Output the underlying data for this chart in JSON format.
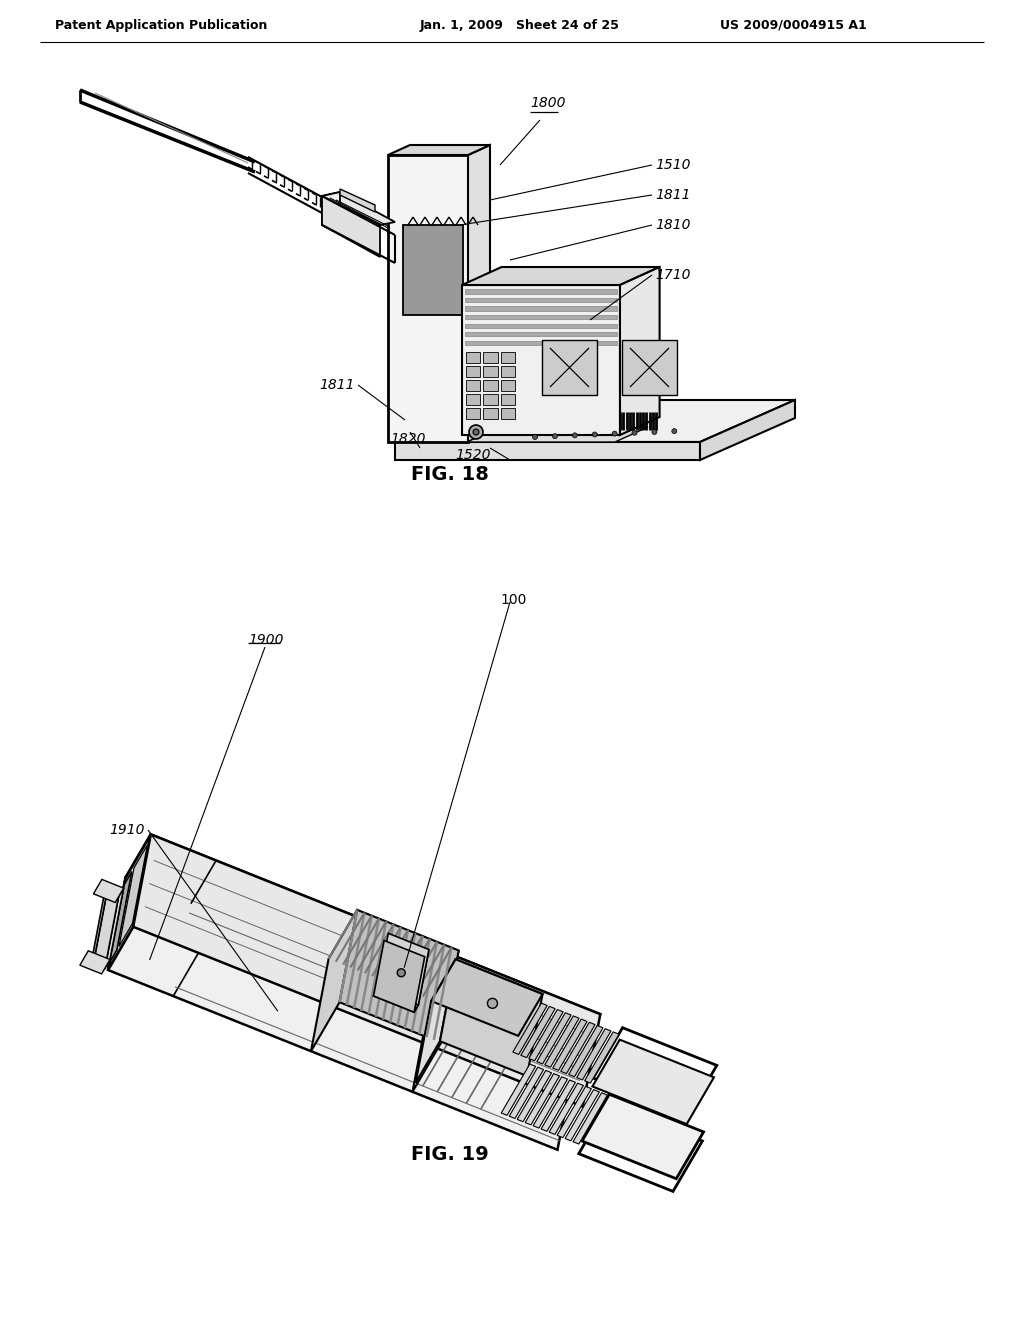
{
  "bg_color": "#ffffff",
  "header_left": "Patent Application Publication",
  "header_center": "Jan. 1, 2009   Sheet 24 of 25",
  "header_right": "US 2009/0004915 A1",
  "fig18_label": "FIG. 18",
  "fig19_label": "FIG. 19",
  "ref_1800": "1800",
  "ref_1510": "1510",
  "ref_1811a": "1811",
  "ref_1810": "1810",
  "ref_1710": "1710",
  "ref_1811b": "1811",
  "ref_1820": "1820",
  "ref_1520": "1520",
  "ref_1900": "1900",
  "ref_100": "100",
  "ref_1910": "1910",
  "lc": "#000000",
  "lw": 1.3
}
